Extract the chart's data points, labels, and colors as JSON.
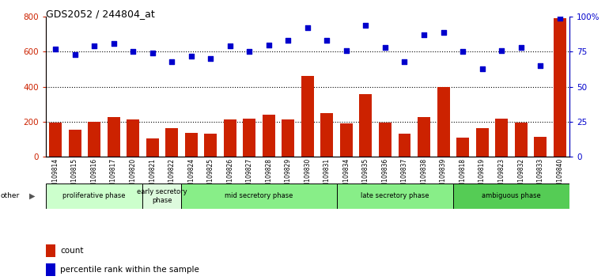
{
  "title": "GDS2052 / 244804_at",
  "samples": [
    "GSM109814",
    "GSM109815",
    "GSM109816",
    "GSM109817",
    "GSM109820",
    "GSM109821",
    "GSM109822",
    "GSM109824",
    "GSM109825",
    "GSM109826",
    "GSM109827",
    "GSM109828",
    "GSM109829",
    "GSM109830",
    "GSM109831",
    "GSM109834",
    "GSM109835",
    "GSM109836",
    "GSM109837",
    "GSM109838",
    "GSM109839",
    "GSM109818",
    "GSM109819",
    "GSM109823",
    "GSM109832",
    "GSM109833",
    "GSM109840"
  ],
  "counts": [
    195,
    155,
    200,
    225,
    215,
    105,
    165,
    135,
    130,
    215,
    220,
    240,
    215,
    460,
    250,
    190,
    360,
    195,
    130,
    225,
    400,
    110,
    165,
    220,
    195,
    115,
    790
  ],
  "percentiles": [
    77,
    73,
    79,
    81,
    75,
    74,
    68,
    72,
    70,
    79,
    75,
    80,
    83,
    92,
    83,
    76,
    94,
    78,
    68,
    87,
    89,
    75,
    63,
    76,
    78,
    65,
    99
  ],
  "phases": [
    {
      "label": "proliferative phase",
      "start": 0,
      "end": 5,
      "color": "#ccffcc"
    },
    {
      "label": "early secretory\nphase",
      "start": 5,
      "end": 7,
      "color": "#ddfadd"
    },
    {
      "label": "mid secretory phase",
      "start": 7,
      "end": 15,
      "color": "#88ee88"
    },
    {
      "label": "late secretory phase",
      "start": 15,
      "end": 21,
      "color": "#88ee88"
    },
    {
      "label": "ambiguous phase",
      "start": 21,
      "end": 27,
      "color": "#55cc55"
    }
  ],
  "bar_color": "#cc2200",
  "dot_color": "#0000cc",
  "ylim_left": [
    0,
    800
  ],
  "ylim_right": [
    0,
    100
  ],
  "yticks_left": [
    0,
    200,
    400,
    600,
    800
  ],
  "yticks_right": [
    0,
    25,
    50,
    75,
    100
  ],
  "yticklabels_right": [
    "0",
    "25",
    "50",
    "75",
    "100%"
  ],
  "grid_values": [
    200,
    400,
    600
  ],
  "plot_bg": "#ffffff"
}
